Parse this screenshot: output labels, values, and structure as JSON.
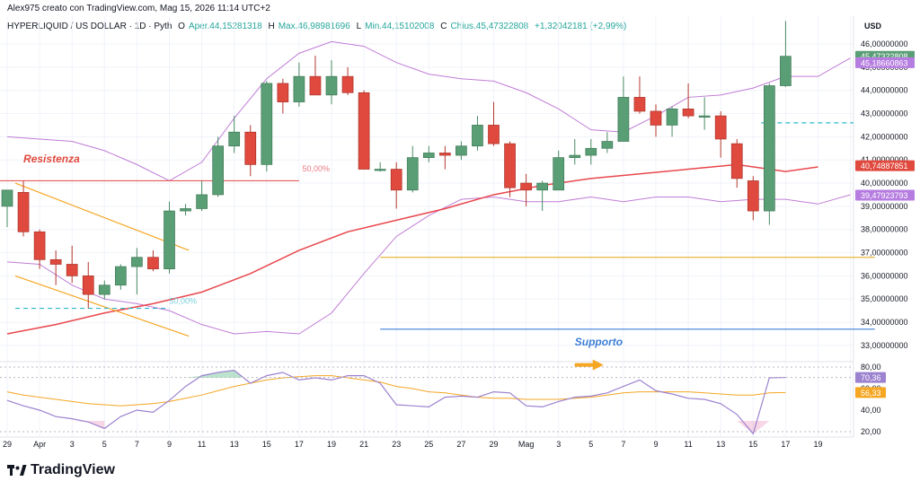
{
  "header": {
    "author_line": "Alex975 creato con TradingView.com, Mag 15, 2026 11:14 UTC+2",
    "symbol": "HYPERLIQUID / US DOLLAR · 1D · Pyth",
    "open_label": "O",
    "open": "Aper.44,15281318",
    "high_label": "H",
    "high": "Max.46,98981696",
    "low_label": "L",
    "low": "Min.44,15102008",
    "close_label": "C",
    "close": "Chius.45,47322808",
    "change": "+1,32042181 (+2,99%)"
  },
  "brand": {
    "name": "TradingView"
  },
  "colors": {
    "bull": "#5a9e75",
    "bear": "#e0493d",
    "bb_band": "#c07cd6",
    "bb_basis": "#e8474d",
    "rsi": "#9c82cf",
    "rsi_ma": "#f5a623",
    "support": "#3d7fd6",
    "resist_orange": "#f5a623",
    "cyan": "#2bb7c9"
  },
  "chart_data": {
    "type": "candlestick",
    "title": "HYPERLIQUID / US DOLLAR · 1D · Pyth",
    "currency_label": "USD",
    "y_ticks": [
      "33,00000000",
      "34,00000000",
      "35,00000000",
      "36,00000000",
      "37,00000000",
      "38,00000000",
      "39,00000000",
      "40,00000000",
      "41,00000000",
      "42,00000000",
      "43,00000000",
      "44,00000000",
      "45,00000000",
      "46,00000000"
    ],
    "ylim": [
      32.3,
      47.2
    ],
    "x_ticks": [
      {
        "day": 0,
        "label": "29"
      },
      {
        "day": 2,
        "label": "Apr"
      },
      {
        "day": 4,
        "label": "3"
      },
      {
        "day": 6,
        "label": "5"
      },
      {
        "day": 8,
        "label": "7"
      },
      {
        "day": 10,
        "label": "9"
      },
      {
        "day": 12,
        "label": "11"
      },
      {
        "day": 14,
        "label": "13"
      },
      {
        "day": 16,
        "label": "15"
      },
      {
        "day": 18,
        "label": "17"
      },
      {
        "day": 20,
        "label": "19"
      },
      {
        "day": 22,
        "label": "21"
      },
      {
        "day": 24,
        "label": "23"
      },
      {
        "day": 26,
        "label": "25"
      },
      {
        "day": 28,
        "label": "27"
      },
      {
        "day": 30,
        "label": "29"
      },
      {
        "day": 32,
        "label": "Mag"
      },
      {
        "day": 34,
        "label": "3"
      },
      {
        "day": 36,
        "label": "5"
      },
      {
        "day": 38,
        "label": "7"
      },
      {
        "day": 40,
        "label": "9"
      },
      {
        "day": 42,
        "label": "11"
      },
      {
        "day": 44,
        "label": "13"
      },
      {
        "day": 46,
        "label": "15"
      },
      {
        "day": 48,
        "label": "17"
      },
      {
        "day": 50,
        "label": "19"
      }
    ],
    "candles": [
      {
        "o": 39.0,
        "h": 39.6,
        "l": 38.1,
        "c": 39.7
      },
      {
        "o": 39.6,
        "h": 40.1,
        "l": 37.7,
        "c": 37.9
      },
      {
        "o": 37.9,
        "h": 38.0,
        "l": 36.3,
        "c": 36.7
      },
      {
        "o": 36.7,
        "h": 37.1,
        "l": 35.6,
        "c": 36.5
      },
      {
        "o": 36.5,
        "h": 37.3,
        "l": 35.7,
        "c": 36.0
      },
      {
        "o": 36.0,
        "h": 36.6,
        "l": 34.6,
        "c": 35.2
      },
      {
        "o": 35.2,
        "h": 35.8,
        "l": 35.0,
        "c": 35.6
      },
      {
        "o": 35.6,
        "h": 36.5,
        "l": 35.4,
        "c": 36.4
      },
      {
        "o": 36.4,
        "h": 37.2,
        "l": 35.2,
        "c": 36.8
      },
      {
        "o": 36.8,
        "h": 37.1,
        "l": 36.2,
        "c": 36.3
      },
      {
        "o": 36.3,
        "h": 39.2,
        "l": 36.1,
        "c": 38.8
      },
      {
        "o": 38.8,
        "h": 39.1,
        "l": 38.6,
        "c": 38.9
      },
      {
        "o": 38.9,
        "h": 40.1,
        "l": 38.8,
        "c": 39.5
      },
      {
        "o": 39.5,
        "h": 42.0,
        "l": 39.4,
        "c": 41.6
      },
      {
        "o": 41.6,
        "h": 42.9,
        "l": 41.3,
        "c": 42.2
      },
      {
        "o": 42.2,
        "h": 42.5,
        "l": 40.3,
        "c": 40.8
      },
      {
        "o": 40.8,
        "h": 44.4,
        "l": 40.5,
        "c": 44.3
      },
      {
        "o": 44.3,
        "h": 44.5,
        "l": 43.0,
        "c": 43.5
      },
      {
        "o": 43.5,
        "h": 45.2,
        "l": 43.3,
        "c": 44.6
      },
      {
        "o": 44.6,
        "h": 45.5,
        "l": 43.8,
        "c": 43.8
      },
      {
        "o": 43.8,
        "h": 45.3,
        "l": 43.4,
        "c": 44.6
      },
      {
        "o": 44.6,
        "h": 45.0,
        "l": 43.8,
        "c": 43.9
      },
      {
        "o": 43.9,
        "h": 44.0,
        "l": 40.7,
        "c": 40.6
      },
      {
        "o": 40.6,
        "h": 40.9,
        "l": 40.5,
        "c": 40.6
      },
      {
        "o": 40.6,
        "h": 40.9,
        "l": 38.9,
        "c": 39.7
      },
      {
        "o": 39.7,
        "h": 41.6,
        "l": 39.6,
        "c": 41.1
      },
      {
        "o": 41.1,
        "h": 41.6,
        "l": 40.9,
        "c": 41.3
      },
      {
        "o": 41.3,
        "h": 41.6,
        "l": 40.6,
        "c": 41.2
      },
      {
        "o": 41.2,
        "h": 41.8,
        "l": 41.0,
        "c": 41.6
      },
      {
        "o": 41.6,
        "h": 42.9,
        "l": 41.4,
        "c": 42.5
      },
      {
        "o": 42.5,
        "h": 43.5,
        "l": 41.6,
        "c": 41.7
      },
      {
        "o": 41.7,
        "h": 41.8,
        "l": 39.4,
        "c": 39.8
      },
      {
        "o": 40.0,
        "h": 40.4,
        "l": 39.0,
        "c": 39.7
      },
      {
        "o": 39.7,
        "h": 40.1,
        "l": 38.8,
        "c": 40.0
      },
      {
        "o": 39.7,
        "h": 41.4,
        "l": 39.7,
        "c": 41.1
      },
      {
        "o": 41.1,
        "h": 41.9,
        "l": 40.8,
        "c": 41.2
      },
      {
        "o": 41.2,
        "h": 41.9,
        "l": 40.8,
        "c": 41.5
      },
      {
        "o": 41.5,
        "h": 42.2,
        "l": 41.3,
        "c": 41.8
      },
      {
        "o": 41.8,
        "h": 44.6,
        "l": 41.8,
        "c": 43.7
      },
      {
        "o": 43.7,
        "h": 44.6,
        "l": 43.0,
        "c": 43.1
      },
      {
        "o": 43.1,
        "h": 43.4,
        "l": 42.0,
        "c": 42.5
      },
      {
        "o": 42.5,
        "h": 43.3,
        "l": 42.0,
        "c": 43.2
      },
      {
        "o": 43.2,
        "h": 44.3,
        "l": 42.8,
        "c": 42.9
      },
      {
        "o": 42.9,
        "h": 43.7,
        "l": 42.3,
        "c": 42.9
      },
      {
        "o": 42.9,
        "h": 43.1,
        "l": 41.1,
        "c": 41.9
      },
      {
        "o": 41.7,
        "h": 41.9,
        "l": 39.8,
        "c": 40.2
      },
      {
        "o": 40.1,
        "h": 40.3,
        "l": 38.4,
        "c": 38.8
      },
      {
        "o": 38.8,
        "h": 44.3,
        "l": 38.2,
        "c": 44.2
      },
      {
        "o": 44.2,
        "h": 46.99,
        "l": 44.15,
        "c": 45.47
      }
    ],
    "bb_upper": [
      {
        "d": 0,
        "v": 42.0
      },
      {
        "d": 2,
        "v": 41.9
      },
      {
        "d": 4,
        "v": 41.8
      },
      {
        "d": 6,
        "v": 41.4
      },
      {
        "d": 8,
        "v": 40.8
      },
      {
        "d": 10,
        "v": 40.1
      },
      {
        "d": 12,
        "v": 40.9
      },
      {
        "d": 14,
        "v": 42.8
      },
      {
        "d": 16,
        "v": 44.5
      },
      {
        "d": 18,
        "v": 45.6
      },
      {
        "d": 20,
        "v": 46.1
      },
      {
        "d": 22,
        "v": 45.9
      },
      {
        "d": 24,
        "v": 45.2
      },
      {
        "d": 26,
        "v": 44.7
      },
      {
        "d": 28,
        "v": 44.5
      },
      {
        "d": 30,
        "v": 44.4
      },
      {
        "d": 32,
        "v": 43.9
      },
      {
        "d": 34,
        "v": 43.2
      },
      {
        "d": 36,
        "v": 42.3
      },
      {
        "d": 38,
        "v": 42.2
      },
      {
        "d": 40,
        "v": 42.9
      },
      {
        "d": 42,
        "v": 43.7
      },
      {
        "d": 44,
        "v": 43.8
      },
      {
        "d": 46,
        "v": 44.1
      },
      {
        "d": 48,
        "v": 44.6
      },
      {
        "d": 50,
        "v": 44.6
      },
      {
        "d": 52,
        "v": 45.4
      }
    ],
    "bb_basis": [
      {
        "d": 0,
        "v": 33.5
      },
      {
        "d": 3,
        "v": 33.9
      },
      {
        "d": 6,
        "v": 34.4
      },
      {
        "d": 9,
        "v": 34.8
      },
      {
        "d": 12,
        "v": 35.3
      },
      {
        "d": 15,
        "v": 36.1
      },
      {
        "d": 18,
        "v": 37.1
      },
      {
        "d": 21,
        "v": 37.9
      },
      {
        "d": 24,
        "v": 38.4
      },
      {
        "d": 27,
        "v": 38.9
      },
      {
        "d": 30,
        "v": 39.5
      },
      {
        "d": 33,
        "v": 39.9
      },
      {
        "d": 36,
        "v": 40.2
      },
      {
        "d": 39,
        "v": 40.4
      },
      {
        "d": 42,
        "v": 40.6
      },
      {
        "d": 45,
        "v": 40.8
      },
      {
        "d": 48,
        "v": 40.5
      },
      {
        "d": 50,
        "v": 40.7
      }
    ],
    "bb_lower": [
      {
        "d": 0,
        "v": 36.6
      },
      {
        "d": 2,
        "v": 36.5
      },
      {
        "d": 4,
        "v": 35.6
      },
      {
        "d": 6,
        "v": 35.0
      },
      {
        "d": 8,
        "v": 34.8
      },
      {
        "d": 10,
        "v": 34.5
      },
      {
        "d": 12,
        "v": 33.9
      },
      {
        "d": 14,
        "v": 33.5
      },
      {
        "d": 16,
        "v": 33.6
      },
      {
        "d": 18,
        "v": 33.5
      },
      {
        "d": 20,
        "v": 34.4
      },
      {
        "d": 22,
        "v": 36.1
      },
      {
        "d": 24,
        "v": 37.7
      },
      {
        "d": 26,
        "v": 38.6
      },
      {
        "d": 28,
        "v": 39.3
      },
      {
        "d": 30,
        "v": 39.4
      },
      {
        "d": 32,
        "v": 39.2
      },
      {
        "d": 34,
        "v": 39.2
      },
      {
        "d": 36,
        "v": 39.4
      },
      {
        "d": 38,
        "v": 39.2
      },
      {
        "d": 40,
        "v": 39.4
      },
      {
        "d": 42,
        "v": 39.4
      },
      {
        "d": 44,
        "v": 39.2
      },
      {
        "d": 46,
        "v": 39.3
      },
      {
        "d": 48,
        "v": 39.3
      },
      {
        "d": 50,
        "v": 39.1
      },
      {
        "d": 52,
        "v": 39.5
      }
    ],
    "lines": [
      {
        "name": "resistenza_line",
        "y": 40.1,
        "x_from": -0.5,
        "x_to": 18
      },
      {
        "name": "supporto_line",
        "y": 33.7,
        "x_from": 23,
        "x_to": 53.5
      },
      {
        "name": "orange_horizontal",
        "y": 36.8,
        "x_from": 23,
        "x_to": 53.5
      }
    ],
    "channel": [
      {
        "x1": 0.5,
        "y1": 40.0,
        "x2": 11.2,
        "y2": 37.1
      },
      {
        "x1": 0.5,
        "y1": 36.0,
        "x2": 11.2,
        "y2": 33.4
      }
    ],
    "cyan_dashed": [
      {
        "y": 34.6,
        "x_from": 0.5,
        "x_to": 10.0
      },
      {
        "y": 42.6,
        "x_from": 46.5,
        "x_to": 53.5
      }
    ],
    "price_labels": [
      {
        "text": "45,47322808",
        "y": 45.47,
        "color": "#5a9e75"
      },
      {
        "text": "45,18660863",
        "y": 45.19,
        "color": "#b67de0"
      },
      {
        "text": "40,74887851",
        "y": 40.75,
        "color": "#e0493d"
      },
      {
        "text": "39,47923793",
        "y": 39.48,
        "color": "#b67de0"
      }
    ],
    "annotations": [
      {
        "text": "Resistenza",
        "x_day": 1.0,
        "y": 40.9,
        "color": "#e0493d"
      },
      {
        "text": "Supporto",
        "x_day": 35.0,
        "y": 33.0,
        "color": "#3d7fd6"
      },
      {
        "text": "50,00%",
        "x_day": 18.2,
        "y": 40.5,
        "color": "#e77a82"
      },
      {
        "text": "50,00%",
        "x_day": 10.0,
        "y": 34.8,
        "color": "#7ad1dd"
      }
    ],
    "rsi": {
      "ylim": [
        15,
        85
      ],
      "y_ticks": [
        "20,00",
        "40,00",
        "60,00",
        "80,00"
      ],
      "values": [
        49,
        44,
        40,
        34,
        32,
        29,
        23,
        34,
        40,
        38,
        49,
        62,
        72,
        75,
        77,
        65,
        72,
        75,
        68,
        70,
        68,
        72,
        72,
        65,
        45,
        44,
        43,
        52,
        53,
        52,
        57,
        56,
        44,
        43,
        48,
        52,
        53,
        56,
        62,
        68,
        58,
        55,
        51,
        50,
        46,
        36,
        18,
        70,
        70.36
      ],
      "ma": [
        57,
        54,
        52,
        50,
        48,
        46,
        45,
        44,
        45,
        46,
        48,
        51,
        54,
        58,
        62,
        65,
        68,
        70,
        71,
        72,
        72,
        70,
        68,
        66,
        62,
        60,
        57,
        56,
        54,
        52,
        51,
        51,
        50,
        50,
        50,
        51,
        52,
        54,
        56,
        57,
        57,
        57,
        57,
        56,
        55,
        54,
        54,
        56,
        56.33
      ],
      "labels": [
        {
          "text": "70,36",
          "value": 70.36,
          "color": "#9c82cf"
        },
        {
          "text": "56,33",
          "value": 56.33,
          "color": "#f5a623"
        }
      ]
    }
  }
}
